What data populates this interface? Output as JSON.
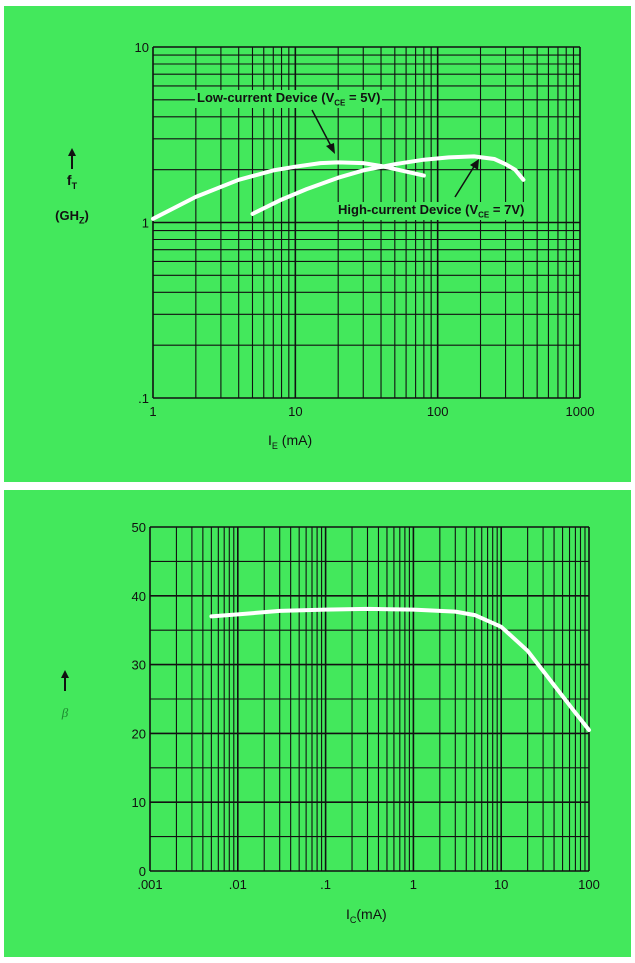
{
  "chart_data": [
    {
      "type": "line",
      "xscale": "log",
      "yscale": "log",
      "xlim": [
        1,
        1000
      ],
      "ylim": [
        0.1,
        10
      ],
      "xticks": [
        "1",
        "10",
        "100",
        "1000"
      ],
      "yticks": [
        "10",
        "1",
        ".1"
      ],
      "ylabel_line1": "f",
      "ylabel_sub": "T",
      "ylabel_line2": "(GH",
      "ylabel_line2_sub": "Z",
      "ylabel_line2_end": ")",
      "xlabel": "I",
      "xlabel_sub": "E",
      "xlabel_unit": " (mA)",
      "annotations": [
        {
          "text": "Low-current Device (V",
          "sub": "CE",
          "end": " = 5V)"
        },
        {
          "text": "High-current Device (V",
          "sub": "CE",
          "end": " = 7V)"
        }
      ],
      "series": [
        {
          "name": "Low-current Device (VCE = 5V)",
          "x": [
            1,
            2,
            4,
            7,
            10,
            15,
            20,
            30,
            40,
            60,
            80
          ],
          "y": [
            1.05,
            1.4,
            1.75,
            1.98,
            2.08,
            2.18,
            2.2,
            2.18,
            2.1,
            1.95,
            1.85
          ]
        },
        {
          "name": "High-current Device (VCE = 7V)",
          "x": [
            5,
            8,
            12,
            20,
            30,
            50,
            80,
            120,
            180,
            250,
            300,
            350,
            400
          ],
          "y": [
            1.12,
            1.35,
            1.55,
            1.8,
            1.98,
            2.15,
            2.28,
            2.35,
            2.38,
            2.3,
            2.15,
            2.0,
            1.75
          ]
        }
      ]
    },
    {
      "type": "line",
      "xscale": "log",
      "yscale": "linear",
      "xlim": [
        0.001,
        100
      ],
      "ylim": [
        0,
        50
      ],
      "xticks": [
        ".001",
        ".01",
        ".1",
        "1",
        "10",
        "100"
      ],
      "yticks": [
        "0",
        "10",
        "20",
        "30",
        "40",
        "50"
      ],
      "ylabel": "β",
      "xlabel": "I",
      "xlabel_sub": "C",
      "xlabel_unit": "(mA)",
      "series": [
        {
          "name": "",
          "x": [
            0.005,
            0.01,
            0.03,
            0.1,
            0.3,
            1,
            3,
            5,
            10,
            20,
            40,
            70,
            100
          ],
          "y": [
            37,
            37.3,
            37.8,
            38,
            38.1,
            38,
            37.7,
            37.2,
            35.5,
            32,
            27,
            23,
            20.5
          ]
        }
      ]
    }
  ],
  "colors": {
    "panel": "#43e85c",
    "grid": "#111111",
    "curve": "#ffffff"
  }
}
